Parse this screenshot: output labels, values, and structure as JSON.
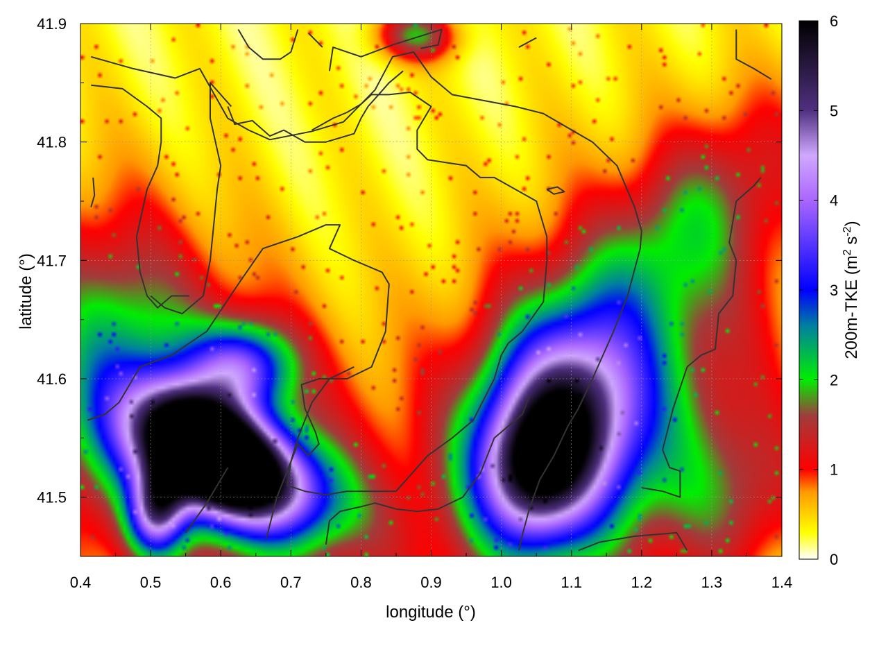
{
  "chart_data": {
    "type": "heatmap",
    "title": "",
    "xlabel": "longitude (°)",
    "ylabel": "latitude (°)",
    "colorbar_label_prefix": "200m-TKE (m",
    "colorbar_label_sup1": "2",
    "colorbar_label_mid": " s",
    "colorbar_label_sup2": "-2",
    "colorbar_label_suffix": ")",
    "xlim": [
      0.4,
      1.4
    ],
    "ylim": [
      41.45,
      41.9
    ],
    "xticks": [
      "0.4",
      "0.5",
      "0.6",
      "0.7",
      "0.8",
      "0.9",
      "1.0",
      "1.1",
      "1.2",
      "1.3",
      "1.4"
    ],
    "yticks": [
      "41.5",
      "41.6",
      "41.7",
      "41.8",
      "41.9"
    ],
    "colorbar_range": [
      0,
      6
    ],
    "colorbar_ticks": [
      "0",
      "1",
      "2",
      "3",
      "4",
      "5",
      "6"
    ],
    "colormap": [
      {
        "v": 0.0,
        "color": "#ffffff"
      },
      {
        "v": 0.3,
        "color": "#ffff00"
      },
      {
        "v": 0.75,
        "color": "#ff9900"
      },
      {
        "v": 1.0,
        "color": "#ff0000"
      },
      {
        "v": 1.6,
        "color": "#a03c3c"
      },
      {
        "v": 2.0,
        "color": "#00ee00"
      },
      {
        "v": 2.6,
        "color": "#0080a0"
      },
      {
        "v": 3.0,
        "color": "#0000ff"
      },
      {
        "v": 4.0,
        "color": "#aa66ff"
      },
      {
        "v": 4.5,
        "color": "#d0a8ff"
      },
      {
        "v": 5.0,
        "color": "#503080"
      },
      {
        "v": 6.0,
        "color": "#000000"
      }
    ],
    "grid": true,
    "field_features": [
      {
        "lon": 0.62,
        "lat": 41.525,
        "peak": 5.4,
        "slon": 0.09,
        "slat": 0.032,
        "rot": -0.2
      },
      {
        "lon": 0.57,
        "lat": 41.545,
        "peak": 3.9,
        "slon": 0.06,
        "slat": 0.03,
        "rot": -0.3
      },
      {
        "lon": 0.51,
        "lat": 41.49,
        "peak": 3.2,
        "slon": 0.028,
        "slat": 0.025,
        "rot": 0.5
      },
      {
        "lon": 1.09,
        "lat": 41.56,
        "peak": 4.4,
        "slon": 0.08,
        "slat": 0.06,
        "rot": 0.3
      },
      {
        "lon": 1.04,
        "lat": 41.52,
        "peak": 2.3,
        "slon": 0.05,
        "slat": 0.04,
        "rot": 0
      },
      {
        "lon": 0.63,
        "lat": 41.61,
        "peak": 2.6,
        "slon": 0.05,
        "slat": 0.025,
        "rot": 0
      },
      {
        "lon": 0.55,
        "lat": 41.56,
        "peak": 1.4,
        "slon": 0.2,
        "slat": 0.11,
        "rot": -0.4
      },
      {
        "lon": 1.15,
        "lat": 41.58,
        "peak": 1.4,
        "slon": 0.2,
        "slat": 0.12,
        "rot": 0.4
      },
      {
        "lon": 1.27,
        "lat": 41.73,
        "peak": 1.0,
        "slon": 0.12,
        "slat": 0.05,
        "rot": 0.5
      },
      {
        "lon": 0.45,
        "lat": 41.6,
        "peak": 1.1,
        "slon": 0.07,
        "slat": 0.08,
        "rot": 0
      },
      {
        "lon": 0.88,
        "lat": 41.89,
        "peak": 1.5,
        "slon": 0.04,
        "slat": 0.015,
        "rot": 0
      },
      {
        "lon": 1.33,
        "lat": 41.5,
        "peak": 0.9,
        "slon": 0.08,
        "slat": 0.05,
        "rot": 0
      }
    ],
    "contours": [
      [
        [
          0.415,
          41.872
        ],
        [
          0.475,
          41.862
        ],
        [
          0.535,
          41.854
        ],
        [
          0.57,
          41.862
        ],
        [
          0.61,
          41.82
        ],
        [
          0.64,
          41.81
        ],
        [
          0.67,
          41.802
        ],
        [
          0.73,
          41.809
        ],
        [
          0.775,
          41.817
        ],
        [
          0.82,
          41.844
        ],
        [
          0.845,
          41.872
        ],
        [
          0.875,
          41.876
        ],
        [
          0.9,
          41.855
        ],
        [
          0.93,
          41.84
        ],
        [
          1.02,
          41.83
        ],
        [
          1.06,
          41.824
        ],
        [
          1.13,
          41.8
        ],
        [
          1.165,
          41.78
        ],
        [
          1.19,
          41.745
        ],
        [
          1.2,
          41.725
        ],
        [
          1.198,
          41.71
        ],
        [
          1.18,
          41.67
        ],
        [
          1.16,
          41.64
        ],
        [
          1.145,
          41.62
        ],
        [
          1.13,
          41.6
        ],
        [
          1.11,
          41.575
        ],
        [
          1.095,
          41.56
        ],
        [
          1.075,
          41.535
        ],
        [
          1.055,
          41.515
        ],
        [
          1.04,
          41.49
        ],
        [
          1.03,
          41.468
        ],
        [
          1.025,
          41.455
        ]
      ],
      [
        [
          0.415,
          41.848
        ],
        [
          0.46,
          41.845
        ],
        [
          0.495,
          41.83
        ],
        [
          0.515,
          41.82
        ],
        [
          0.515,
          41.8
        ],
        [
          0.51,
          41.78
        ],
        [
          0.495,
          41.76
        ],
        [
          0.48,
          41.72
        ],
        [
          0.485,
          41.69
        ],
        [
          0.495,
          41.67
        ],
        [
          0.51,
          41.66
        ],
        [
          0.53,
          41.67
        ],
        [
          0.555,
          41.67
        ]
      ],
      [
        [
          0.41,
          41.565
        ],
        [
          0.435,
          41.57
        ],
        [
          0.455,
          41.58
        ],
        [
          0.485,
          41.61
        ],
        [
          0.53,
          41.62
        ],
        [
          0.58,
          41.64
        ],
        [
          0.625,
          41.68
        ],
        [
          0.66,
          41.71
        ],
        [
          0.71,
          41.72
        ],
        [
          0.75,
          41.73
        ],
        [
          0.77,
          41.73
        ],
        [
          0.755,
          41.71
        ],
        [
          0.79,
          41.7
        ],
        [
          0.83,
          41.69
        ],
        [
          0.84,
          41.68
        ],
        [
          0.835,
          41.64
        ],
        [
          0.815,
          41.61
        ],
        [
          0.78,
          41.6
        ],
        [
          0.74,
          41.6
        ],
        [
          0.715,
          41.595
        ],
        [
          0.72,
          41.575
        ],
        [
          0.735,
          41.555
        ],
        [
          0.74,
          41.545
        ],
        [
          0.725,
          41.535
        ],
        [
          0.71,
          41.545
        ],
        [
          0.7,
          41.53
        ],
        [
          0.695,
          41.51
        ],
        [
          0.72,
          41.505
        ],
        [
          0.75,
          41.502
        ],
        [
          0.78,
          41.505
        ],
        [
          0.85,
          41.505
        ],
        [
          0.895,
          41.535
        ],
        [
          0.93,
          41.55
        ],
        [
          0.96,
          41.565
        ],
        [
          0.99,
          41.6
        ],
        [
          1.0,
          41.62
        ],
        [
          1.01,
          41.63
        ],
        [
          1.03,
          41.64
        ],
        [
          1.06,
          41.665
        ],
        [
          1.065,
          41.7
        ],
        [
          1.065,
          41.72
        ],
        [
          1.05,
          41.75
        ],
        [
          0.99,
          41.77
        ],
        [
          0.97,
          41.77
        ],
        [
          0.95,
          41.78
        ],
        [
          0.895,
          41.785
        ],
        [
          0.88,
          41.794
        ],
        [
          0.88,
          41.81
        ],
        [
          0.9,
          41.83
        ],
        [
          0.87,
          41.842
        ],
        [
          0.84,
          41.84
        ],
        [
          0.815,
          41.84
        ],
        [
          0.8,
          41.832
        ],
        [
          0.78,
          41.825
        ],
        [
          0.76,
          41.82
        ],
        [
          0.73,
          41.81
        ]
      ],
      [
        [
          0.61,
          41.83
        ],
        [
          0.62,
          41.815
        ],
        [
          0.645,
          41.818
        ],
        [
          0.67,
          41.805
        ],
        [
          0.69,
          41.81
        ],
        [
          0.72,
          41.8
        ],
        [
          0.75,
          41.8
        ],
        [
          0.79,
          41.807
        ],
        [
          0.8,
          41.82
        ],
        [
          0.81,
          41.83
        ],
        [
          0.825,
          41.84
        ],
        [
          0.84,
          41.85
        ],
        [
          0.86,
          41.86
        ]
      ],
      [
        [
          0.615,
          41.83
        ],
        [
          0.585,
          41.85
        ],
        [
          0.585,
          41.82
        ],
        [
          0.6,
          41.78
        ],
        [
          0.595,
          41.76
        ],
        [
          0.59,
          41.73
        ],
        [
          0.585,
          41.7
        ],
        [
          0.575,
          41.67
        ],
        [
          0.545,
          41.655
        ],
        [
          0.52,
          41.66
        ],
        [
          0.5,
          41.67
        ]
      ],
      [
        [
          0.755,
          41.86
        ],
        [
          0.76,
          41.88
        ],
        [
          0.8,
          41.872
        ],
        [
          0.845,
          41.882
        ],
        [
          0.915,
          41.895
        ],
        [
          0.91,
          41.882
        ],
        [
          0.885,
          41.879
        ]
      ],
      [
        [
          0.625,
          41.895
        ],
        [
          0.64,
          41.88
        ],
        [
          0.66,
          41.87
        ],
        [
          0.685,
          41.87
        ],
        [
          0.7,
          41.876
        ],
        [
          0.71,
          41.895
        ]
      ],
      [
        [
          0.725,
          41.892
        ],
        [
          0.745,
          41.88
        ]
      ],
      [
        [
          1.025,
          41.88
        ],
        [
          1.05,
          41.888
        ]
      ],
      [
        [
          1.335,
          41.895
        ],
        [
          1.335,
          41.87
        ],
        [
          1.36,
          41.862
        ],
        [
          1.385,
          41.853
        ]
      ],
      [
        [
          0.418,
          41.77
        ],
        [
          0.42,
          41.755
        ],
        [
          0.415,
          41.745
        ]
      ],
      [
        [
          1.065,
          41.76
        ],
        [
          1.08,
          41.762
        ],
        [
          1.09,
          41.758
        ],
        [
          1.075,
          41.756
        ],
        [
          1.065,
          41.76
        ]
      ],
      [
        [
          1.37,
          41.77
        ],
        [
          1.36,
          41.763
        ],
        [
          1.335,
          41.75
        ],
        [
          1.325,
          41.715
        ],
        [
          1.335,
          41.7
        ],
        [
          1.33,
          41.67
        ],
        [
          1.31,
          41.655
        ],
        [
          1.305,
          41.625
        ],
        [
          1.285,
          41.62
        ],
        [
          1.265,
          41.61
        ],
        [
          1.245,
          41.575
        ],
        [
          1.23,
          41.54
        ],
        [
          1.24,
          41.525
        ],
        [
          1.255,
          41.522
        ],
        [
          1.255,
          41.5
        ],
        [
          1.23,
          41.505
        ],
        [
          1.2,
          41.508
        ]
      ],
      [
        [
          1.11,
          41.455
        ],
        [
          1.14,
          41.462
        ],
        [
          1.19,
          41.467
        ],
        [
          1.25,
          41.47
        ],
        [
          1.265,
          41.455
        ]
      ],
      [
        [
          0.75,
          41.46
        ],
        [
          0.755,
          41.48
        ],
        [
          0.77,
          41.488
        ],
        [
          0.8,
          41.492
        ],
        [
          0.82,
          41.495
        ],
        [
          0.85,
          41.49
        ],
        [
          0.88,
          41.488
        ],
        [
          0.91,
          41.49
        ],
        [
          0.945,
          41.5
        ],
        [
          0.97,
          41.52
        ],
        [
          0.99,
          41.55
        ],
        [
          1.03,
          41.57
        ],
        [
          1.04,
          41.585
        ]
      ],
      [
        [
          0.665,
          41.465
        ],
        [
          0.68,
          41.5
        ],
        [
          0.7,
          41.53
        ],
        [
          0.71,
          41.55
        ],
        [
          0.73,
          41.58
        ],
        [
          0.755,
          41.6
        ],
        [
          0.79,
          41.61
        ]
      ],
      [
        [
          0.55,
          41.47
        ],
        [
          0.58,
          41.495
        ],
        [
          0.61,
          41.525
        ]
      ]
    ]
  }
}
